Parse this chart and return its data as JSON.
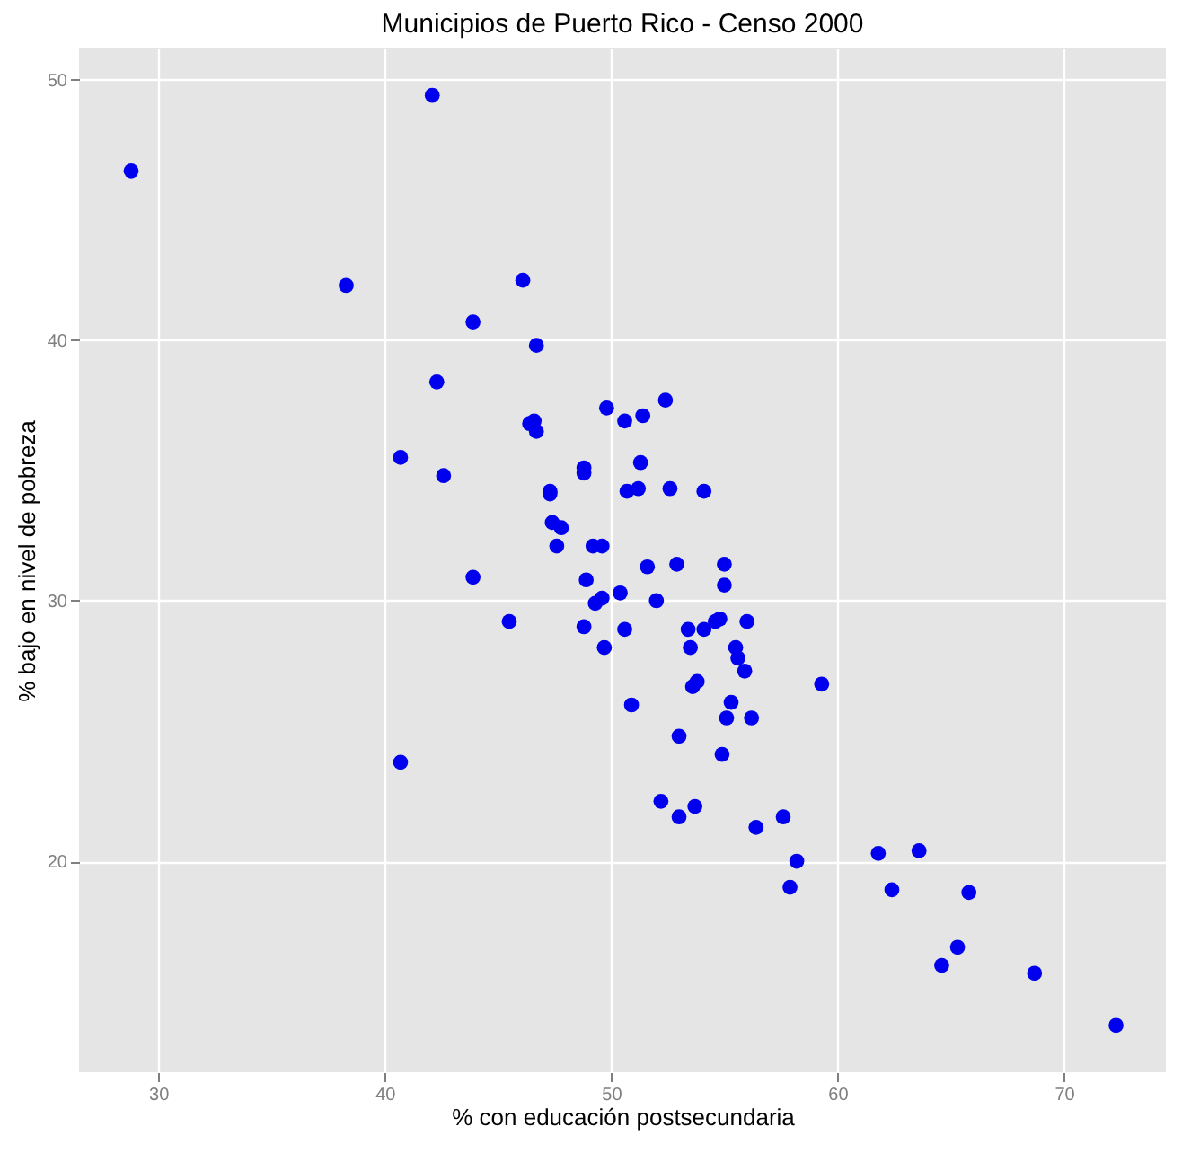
{
  "chart_data": {
    "type": "scatter",
    "title": "Municipios de Puerto Rico - Censo 2000",
    "xlabel": "% con educación postsecundaria",
    "ylabel": "% bajo en nivel de pobreza",
    "x": [
      28.8,
      42.1,
      38.3,
      46.1,
      43.9,
      46.7,
      42.3,
      52.4,
      49.8,
      50.6,
      51.4,
      46.4,
      46.6,
      46.7,
      40.7,
      42.6,
      51.3,
      48.8,
      48.8,
      47.3,
      47.3,
      50.7,
      51.2,
      52.6,
      54.1,
      47.4,
      47.8,
      47.6,
      49.2,
      49.6,
      43.9,
      48.9,
      51.6,
      52.9,
      55.0,
      55.0,
      50.4,
      49.6,
      49.3,
      52.0,
      45.5,
      48.8,
      50.6,
      49.7,
      53.4,
      54.1,
      54.6,
      54.8,
      56.0,
      53.5,
      55.5,
      55.6,
      55.9,
      53.6,
      53.8,
      59.3,
      50.9,
      55.3,
      55.1,
      56.2,
      53.0,
      54.9,
      40.7,
      52.2,
      53.0,
      53.7,
      56.4,
      57.6,
      58.2,
      57.9,
      61.8,
      63.6,
      62.4,
      65.8,
      65.3,
      64.6,
      68.7,
      72.3
    ],
    "series": [
      {
        "color": "#0000ee",
        "values": [
          46.5,
          49.4,
          42.1,
          42.3,
          40.7,
          39.8,
          38.4,
          37.7,
          37.4,
          36.9,
          37.1,
          36.8,
          36.9,
          36.5,
          35.5,
          34.8,
          35.3,
          35.1,
          34.9,
          34.2,
          34.1,
          34.2,
          34.3,
          34.3,
          34.2,
          33.0,
          32.8,
          32.1,
          32.1,
          32.1,
          30.9,
          30.8,
          31.3,
          31.4,
          31.4,
          30.6,
          30.3,
          30.1,
          29.9,
          30.0,
          29.2,
          29.0,
          28.9,
          28.2,
          28.9,
          28.9,
          29.2,
          29.3,
          29.2,
          28.2,
          28.2,
          27.8,
          27.3,
          26.7,
          26.9,
          26.8,
          26.0,
          26.1,
          25.5,
          25.5,
          24.8,
          24.1,
          23.8,
          22.3,
          21.7,
          22.1,
          21.3,
          21.7,
          20.0,
          19.0,
          20.3,
          20.4,
          18.9,
          18.8,
          16.7,
          16.0,
          15.7,
          13.7
        ]
      }
    ],
    "xlim": [
      26.5,
      74.5
    ],
    "xticks": [
      30,
      40,
      50,
      60,
      70
    ],
    "ylim": [
      11.9,
      51.2
    ],
    "yticks": [
      20,
      30,
      40,
      50
    ],
    "grid": true,
    "marker": "circle"
  }
}
